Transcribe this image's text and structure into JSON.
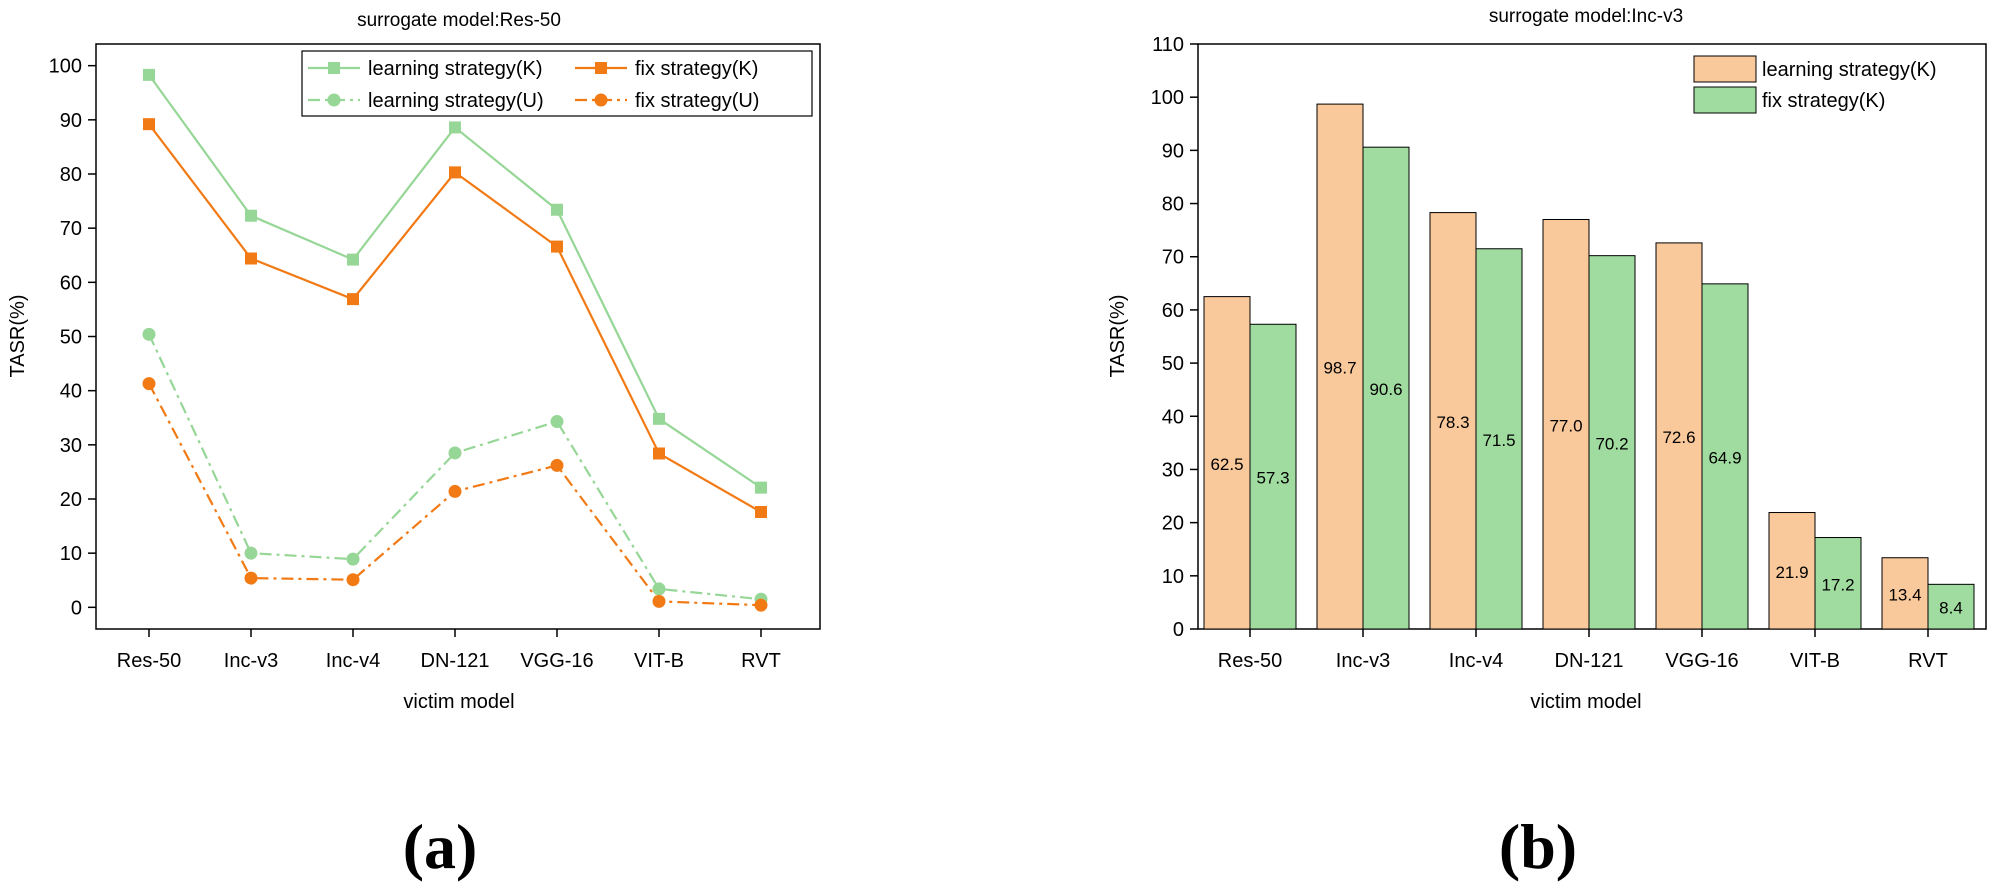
{
  "chart_data": [
    {
      "type": "line",
      "title": "surrogate model:Res-50",
      "xlabel": "victim model",
      "ylabel": "TASR(%)",
      "ylim": [
        -4,
        104
      ],
      "yticks": [
        0,
        10,
        20,
        30,
        40,
        50,
        60,
        70,
        80,
        90,
        100
      ],
      "categories": [
        "Res-50",
        "Inc-v3",
        "Inc-v4",
        "DN-121",
        "VGG-16",
        "VIT-B",
        "RVT"
      ],
      "legend_position": "top-right",
      "grid": false,
      "series": [
        {
          "name": "learning strategy(K)",
          "values": [
            98.3,
            72.3,
            64.2,
            88.6,
            73.4,
            34.8,
            22.1
          ],
          "color": "#96d696",
          "marker": "square",
          "linestyle": "solid"
        },
        {
          "name": "fix strategy(K)",
          "values": [
            89.2,
            64.4,
            56.9,
            80.3,
            66.6,
            28.4,
            17.6
          ],
          "color": "#f27a15",
          "marker": "square",
          "linestyle": "solid"
        },
        {
          "name": "learning strategy(U)",
          "values": [
            50.4,
            10.0,
            8.9,
            28.5,
            34.3,
            3.4,
            1.5
          ],
          "color": "#96d696",
          "marker": "circle",
          "linestyle": "dash-dot"
        },
        {
          "name": "fix strategy(U)",
          "values": [
            41.3,
            5.4,
            5.1,
            21.4,
            26.2,
            1.1,
            0.4
          ],
          "color": "#f27a15",
          "marker": "circle",
          "linestyle": "dash-dot"
        }
      ],
      "panel_label": "(a)"
    },
    {
      "type": "bar",
      "title": "surrogate model:Inc-v3",
      "xlabel": "victim model",
      "ylabel": "TASR(%)",
      "ylim": [
        0,
        110
      ],
      "yticks": [
        0,
        10,
        20,
        30,
        40,
        50,
        60,
        70,
        80,
        90,
        100,
        110
      ],
      "categories": [
        "Res-50",
        "Inc-v3",
        "Inc-v4",
        "DN-121",
        "VGG-16",
        "VIT-B",
        "RVT"
      ],
      "legend_position": "top-right",
      "grid": false,
      "series": [
        {
          "name": "learning strategy(K)",
          "values": [
            62.5,
            98.7,
            78.3,
            77.0,
            72.6,
            21.9,
            13.4
          ],
          "labels": [
            "62.5",
            "98.7",
            "78.3",
            "77.0",
            "72.6",
            "21.9",
            "13.4"
          ],
          "color": "#f9c89b"
        },
        {
          "name": "fix strategy(K)",
          "values": [
            57.3,
            90.6,
            71.5,
            70.2,
            64.9,
            17.2,
            8.4
          ],
          "labels": [
            "57.3",
            "90.6",
            "71.5",
            "70.2",
            "64.9",
            "17.2",
            "8.4"
          ],
          "color": "#a0dca0"
        }
      ],
      "panel_label": "(b)"
    }
  ]
}
